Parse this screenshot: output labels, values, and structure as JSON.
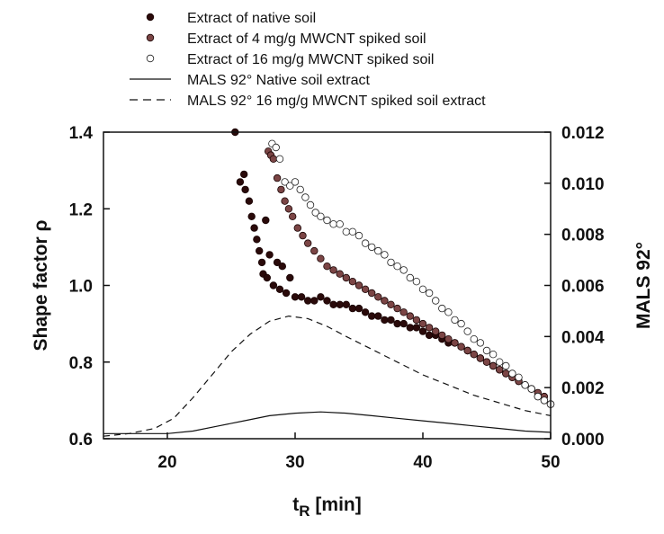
{
  "chart_data": {
    "type": "scatter",
    "xlabel": "t",
    "xlabel_sub": "R",
    "xlabel_unit": " [min]",
    "ylabel": "Shape factor ρ",
    "y2label": "MALS 92°",
    "xlim": [
      15,
      50
    ],
    "ylim": [
      0.6,
      1.4
    ],
    "y2lim": [
      0.0,
      0.012
    ],
    "xticks": [
      "20",
      "30",
      "40",
      "50"
    ],
    "yticks": [
      "0.6",
      "0.8",
      "1.0",
      "1.2",
      "1.4"
    ],
    "y2ticks": [
      "0.000",
      "0.002",
      "0.004",
      "0.006",
      "0.008",
      "0.010",
      "0.012"
    ],
    "grid": false,
    "legend_position": "top",
    "series": [
      {
        "name": "Extract of native soil",
        "kind": "points",
        "axis": "left",
        "marker": "filled",
        "color": "#2a0a0a",
        "points": [
          [
            25.3,
            1.4
          ],
          [
            25.7,
            1.27
          ],
          [
            26.0,
            1.29
          ],
          [
            26.1,
            1.25
          ],
          [
            26.4,
            1.22
          ],
          [
            26.6,
            1.18
          ],
          [
            26.8,
            1.15
          ],
          [
            27.0,
            1.12
          ],
          [
            27.2,
            1.09
          ],
          [
            27.4,
            1.06
          ],
          [
            27.5,
            1.03
          ],
          [
            27.7,
            1.17
          ],
          [
            27.8,
            1.02
          ],
          [
            28.0,
            1.08
          ],
          [
            28.3,
            1.0
          ],
          [
            28.6,
            1.06
          ],
          [
            28.8,
            0.99
          ],
          [
            29.0,
            1.05
          ],
          [
            29.3,
            0.98
          ],
          [
            29.6,
            1.02
          ],
          [
            30.0,
            0.97
          ],
          [
            30.5,
            0.97
          ],
          [
            31.0,
            0.96
          ],
          [
            31.5,
            0.96
          ],
          [
            32.0,
            0.97
          ],
          [
            32.5,
            0.96
          ],
          [
            33.0,
            0.95
          ],
          [
            33.5,
            0.95
          ],
          [
            34.0,
            0.95
          ],
          [
            34.5,
            0.94
          ],
          [
            35.0,
            0.94
          ],
          [
            35.5,
            0.93
          ],
          [
            36.0,
            0.92
          ],
          [
            36.5,
            0.92
          ],
          [
            37.0,
            0.91
          ],
          [
            37.5,
            0.91
          ],
          [
            38.0,
            0.9
          ],
          [
            38.5,
            0.9
          ],
          [
            39.0,
            0.89
          ],
          [
            39.5,
            0.89
          ],
          [
            40.0,
            0.88
          ],
          [
            40.5,
            0.87
          ],
          [
            41.0,
            0.87
          ],
          [
            41.5,
            0.86
          ],
          [
            42.0,
            0.85
          ],
          [
            42.5,
            0.85
          ],
          [
            43.0,
            0.84
          ],
          [
            43.5,
            0.83
          ],
          [
            44.0,
            0.82
          ],
          [
            44.5,
            0.81
          ],
          [
            45.0,
            0.8
          ],
          [
            45.5,
            0.79
          ],
          [
            46.0,
            0.78
          ],
          [
            46.5,
            0.77
          ],
          [
            47.0,
            0.76
          ],
          [
            47.5,
            0.75
          ],
          [
            48.0,
            0.74
          ],
          [
            48.5,
            0.73
          ],
          [
            49.0,
            0.71
          ],
          [
            49.5,
            0.7
          ],
          [
            50.0,
            0.69
          ]
        ]
      },
      {
        "name": "Extract of 4 mg/g MWCNT spiked soil",
        "kind": "points",
        "axis": "left",
        "marker": "filled",
        "color": "#7b4545",
        "points": [
          [
            27.9,
            1.35
          ],
          [
            28.1,
            1.34
          ],
          [
            28.3,
            1.33
          ],
          [
            28.6,
            1.28
          ],
          [
            28.9,
            1.25
          ],
          [
            29.2,
            1.22
          ],
          [
            29.5,
            1.2
          ],
          [
            29.8,
            1.18
          ],
          [
            30.2,
            1.15
          ],
          [
            30.6,
            1.13
          ],
          [
            31.0,
            1.11
          ],
          [
            31.5,
            1.09
          ],
          [
            32.0,
            1.07
          ],
          [
            32.5,
            1.05
          ],
          [
            33.0,
            1.04
          ],
          [
            33.5,
            1.03
          ],
          [
            34.0,
            1.02
          ],
          [
            34.5,
            1.01
          ],
          [
            35.0,
            1.0
          ],
          [
            35.5,
            0.99
          ],
          [
            36.0,
            0.98
          ],
          [
            36.5,
            0.97
          ],
          [
            37.0,
            0.96
          ],
          [
            37.5,
            0.95
          ],
          [
            38.0,
            0.94
          ],
          [
            38.5,
            0.93
          ],
          [
            39.0,
            0.92
          ],
          [
            39.5,
            0.91
          ],
          [
            40.0,
            0.9
          ],
          [
            40.5,
            0.89
          ],
          [
            41.0,
            0.88
          ],
          [
            41.5,
            0.87
          ],
          [
            42.0,
            0.86
          ],
          [
            42.5,
            0.85
          ],
          [
            43.0,
            0.84
          ],
          [
            43.5,
            0.83
          ],
          [
            44.0,
            0.82
          ],
          [
            44.5,
            0.81
          ],
          [
            45.0,
            0.8
          ],
          [
            45.5,
            0.79
          ],
          [
            46.0,
            0.78
          ],
          [
            46.5,
            0.77
          ],
          [
            47.0,
            0.76
          ],
          [
            47.5,
            0.75
          ],
          [
            48.0,
            0.74
          ],
          [
            48.5,
            0.73
          ],
          [
            49.0,
            0.72
          ],
          [
            49.5,
            0.71
          ],
          [
            50.0,
            0.69
          ]
        ]
      },
      {
        "name": "Extract of 16 mg/g MWCNT spiked soil",
        "kind": "points",
        "axis": "left",
        "marker": "open",
        "color": "#222222",
        "points": [
          [
            28.2,
            1.37
          ],
          [
            28.5,
            1.36
          ],
          [
            28.8,
            1.33
          ],
          [
            29.2,
            1.27
          ],
          [
            29.6,
            1.26
          ],
          [
            30.0,
            1.27
          ],
          [
            30.4,
            1.25
          ],
          [
            30.8,
            1.23
          ],
          [
            31.2,
            1.21
          ],
          [
            31.6,
            1.19
          ],
          [
            32.0,
            1.18
          ],
          [
            32.5,
            1.17
          ],
          [
            33.0,
            1.16
          ],
          [
            33.5,
            1.16
          ],
          [
            34.0,
            1.14
          ],
          [
            34.5,
            1.14
          ],
          [
            35.0,
            1.13
          ],
          [
            35.5,
            1.11
          ],
          [
            36.0,
            1.1
          ],
          [
            36.5,
            1.09
          ],
          [
            37.0,
            1.08
          ],
          [
            37.5,
            1.06
          ],
          [
            38.0,
            1.05
          ],
          [
            38.5,
            1.04
          ],
          [
            39.0,
            1.02
          ],
          [
            39.5,
            1.01
          ],
          [
            40.0,
            0.99
          ],
          [
            40.5,
            0.98
          ],
          [
            41.0,
            0.96
          ],
          [
            41.5,
            0.94
          ],
          [
            42.0,
            0.93
          ],
          [
            42.5,
            0.91
          ],
          [
            43.0,
            0.9
          ],
          [
            43.5,
            0.88
          ],
          [
            44.0,
            0.86
          ],
          [
            44.5,
            0.85
          ],
          [
            45.0,
            0.83
          ],
          [
            45.5,
            0.82
          ],
          [
            46.0,
            0.8
          ],
          [
            46.5,
            0.79
          ],
          [
            47.0,
            0.77
          ],
          [
            47.5,
            0.76
          ],
          [
            48.0,
            0.74
          ],
          [
            48.5,
            0.73
          ],
          [
            49.0,
            0.71
          ],
          [
            49.5,
            0.7
          ],
          [
            50.0,
            0.69
          ]
        ]
      },
      {
        "name": "MALS 92° Native soil extract",
        "kind": "line",
        "axis": "right",
        "dash": "solid",
        "color": "#111111",
        "points": [
          [
            15,
            0.0002
          ],
          [
            18,
            0.0002
          ],
          [
            20,
            0.0002
          ],
          [
            22,
            0.0003
          ],
          [
            24,
            0.0005
          ],
          [
            26,
            0.0007
          ],
          [
            28,
            0.0009
          ],
          [
            30,
            0.001
          ],
          [
            32,
            0.00105
          ],
          [
            34,
            0.001
          ],
          [
            36,
            0.0009
          ],
          [
            38,
            0.0008
          ],
          [
            40,
            0.0007
          ],
          [
            42,
            0.0006
          ],
          [
            44,
            0.0005
          ],
          [
            46,
            0.0004
          ],
          [
            48,
            0.0003
          ],
          [
            50,
            0.00025
          ]
        ]
      },
      {
        "name": "MALS 92° 16 mg/g MWCNT spiked soil extract",
        "kind": "line",
        "axis": "right",
        "dash": "dashed",
        "color": "#111111",
        "points": [
          [
            15,
            0.0001
          ],
          [
            17,
            0.0002
          ],
          [
            19,
            0.0004
          ],
          [
            20.5,
            0.0008
          ],
          [
            22,
            0.0016
          ],
          [
            23.5,
            0.0025
          ],
          [
            25,
            0.0034
          ],
          [
            26.5,
            0.0041
          ],
          [
            28,
            0.0046
          ],
          [
            29.5,
            0.0048
          ],
          [
            31,
            0.0047
          ],
          [
            32.5,
            0.0044
          ],
          [
            34,
            0.004
          ],
          [
            36,
            0.0035
          ],
          [
            38,
            0.003
          ],
          [
            40,
            0.0025
          ],
          [
            42,
            0.0021
          ],
          [
            44,
            0.0017
          ],
          [
            46,
            0.0014
          ],
          [
            48,
            0.0011
          ],
          [
            50,
            0.0009
          ]
        ]
      }
    ]
  }
}
